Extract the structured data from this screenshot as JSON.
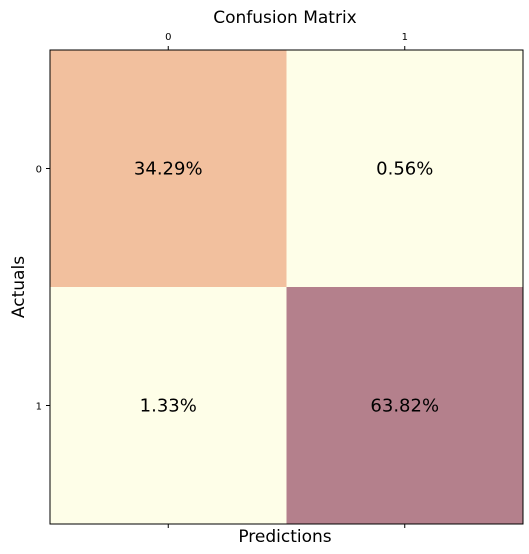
{
  "chart_data": {
    "type": "heatmap",
    "title": "Confusion Matrix",
    "xlabel": "Predictions",
    "ylabel": "Actuals",
    "x_categories": [
      "0",
      "1"
    ],
    "y_categories": [
      "0",
      "1"
    ],
    "x_tick_position": "top",
    "cells": [
      {
        "row": 0,
        "col": 0,
        "value": 34.29,
        "label": "34.29%",
        "color": "#f2c09e"
      },
      {
        "row": 0,
        "col": 1,
        "value": 0.56,
        "label": "0.56%",
        "color": "#fefee8"
      },
      {
        "row": 1,
        "col": 0,
        "value": 1.33,
        "label": "1.33%",
        "color": "#fefee8"
      },
      {
        "row": 1,
        "col": 1,
        "value": 63.82,
        "label": "63.82%",
        "color": "#b4808c"
      }
    ],
    "grid": false,
    "legend": "none"
  }
}
